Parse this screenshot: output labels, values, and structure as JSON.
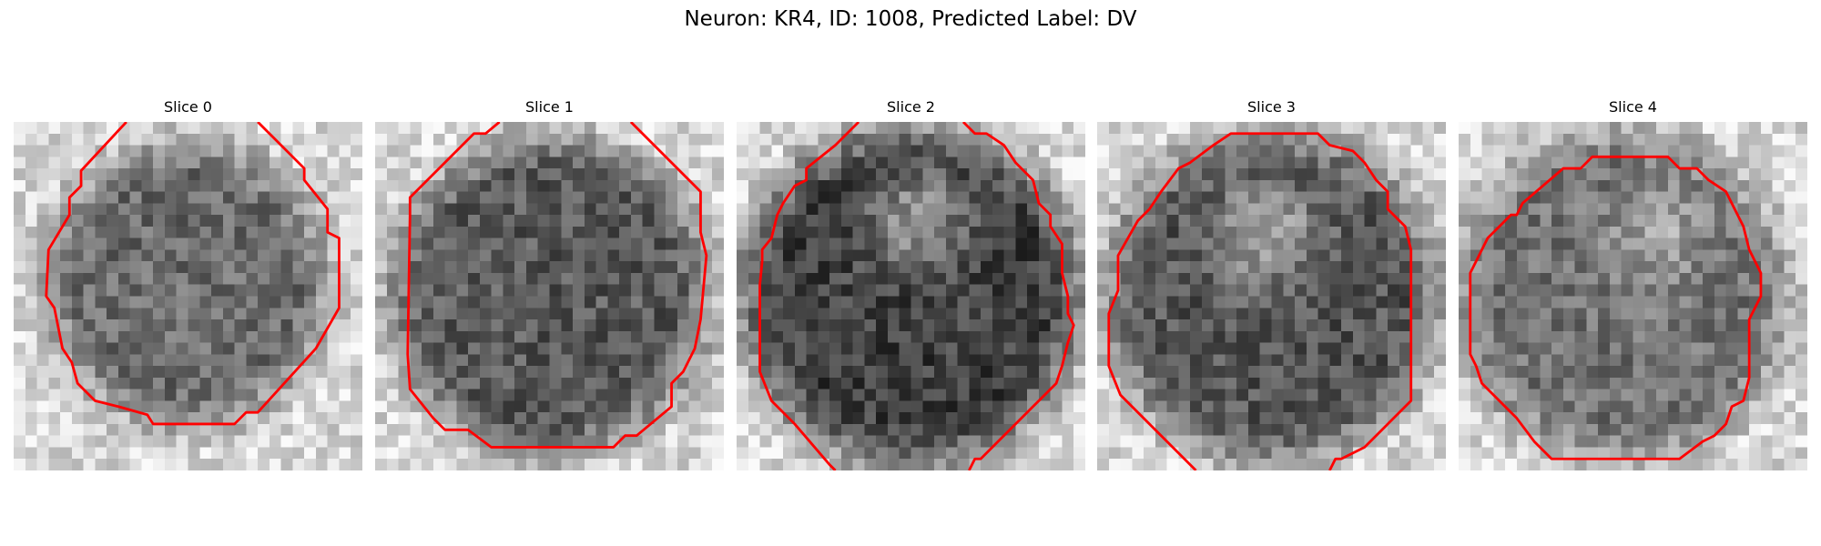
{
  "title": "Neuron: KR4, ID: 1008, Predicted Label: DV",
  "panels": [
    {
      "title": "Slice 0"
    },
    {
      "title": "Slice 1"
    },
    {
      "title": "Slice 2"
    },
    {
      "title": "Slice 3"
    },
    {
      "title": "Slice 4"
    }
  ]
}
